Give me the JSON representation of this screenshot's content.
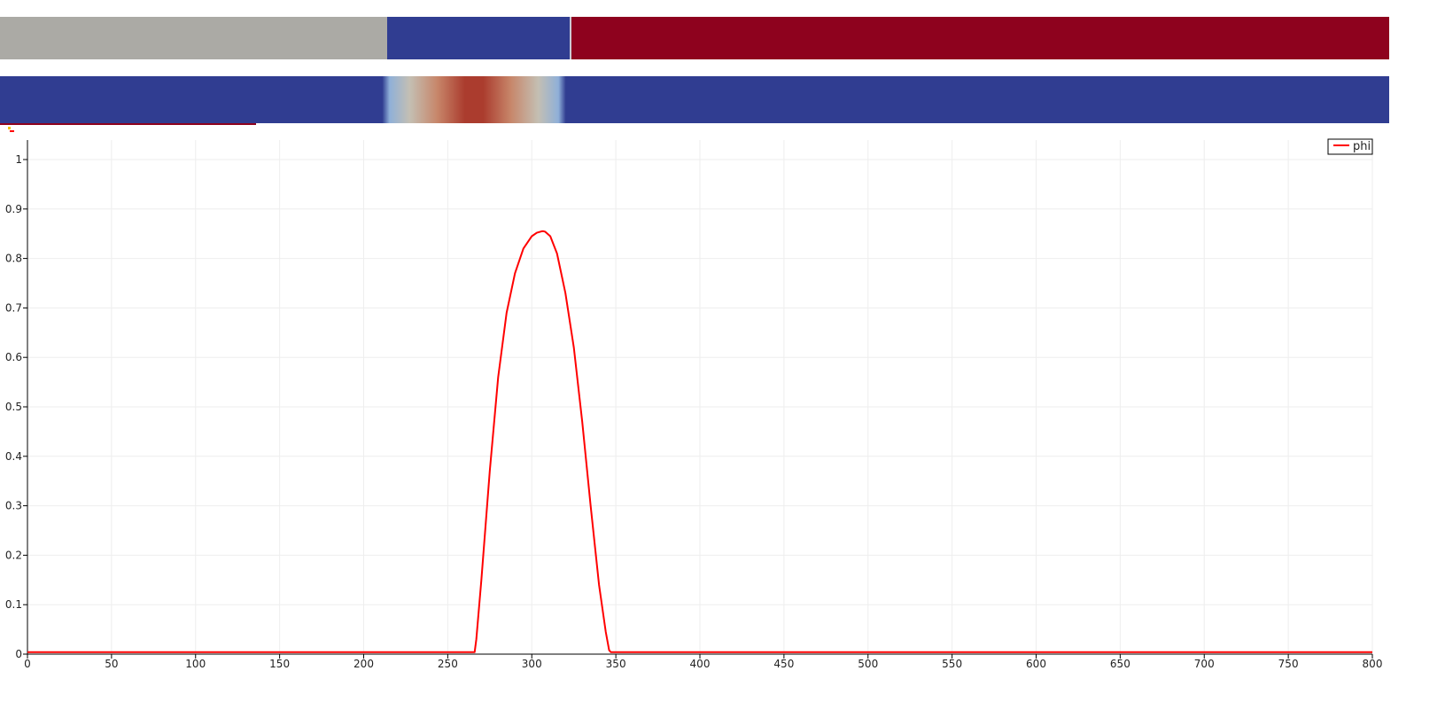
{
  "colors": {
    "gray": "#abaaa5",
    "blue": "#303d91",
    "red": "#8e021e",
    "line": "#ff0000",
    "grid": "#eeeeee",
    "axis": "#000000",
    "diverging_warm": "#ab3c2e",
    "diverging_mid": "#c4bfb3",
    "diverging_light": "#8fb0d8"
  },
  "material_band": {
    "segments": [
      {
        "label": "gray",
        "start": 0,
        "end": 230
      },
      {
        "label": "blue",
        "start": 230,
        "end": 339
      },
      {
        "label": "red",
        "start": 339,
        "end": 825
      }
    ]
  },
  "scalar_band": {
    "peak_start": 227,
    "peak_end": 336
  },
  "chart_data": {
    "type": "line",
    "title": "",
    "xlabel": "",
    "ylabel": "",
    "xlim": [
      0,
      800
    ],
    "ylim": [
      0,
      1
    ],
    "x_ticks": [
      "0",
      "50",
      "100",
      "150",
      "200",
      "250",
      "300",
      "350",
      "400",
      "450",
      "500",
      "550",
      "600",
      "650",
      "700",
      "750",
      "800"
    ],
    "y_ticks": [
      "0",
      "0.1",
      "0.2",
      "0.3",
      "0.4",
      "0.5",
      "0.6",
      "0.7",
      "0.8",
      "0.9",
      "1"
    ],
    "grid": true,
    "legend_position": "top-right",
    "series": [
      {
        "name": "phi",
        "color": "#ff0000",
        "x": [
          0,
          265,
          266,
          267,
          270,
          275,
          280,
          285,
          290,
          295,
          300,
          303,
          306,
          307,
          308,
          311,
          315,
          320,
          325,
          330,
          335,
          340,
          344,
          346,
          347,
          348,
          800
        ],
        "y": [
          0.004,
          0.004,
          0.004,
          0.03,
          0.15,
          0.37,
          0.56,
          0.69,
          0.77,
          0.82,
          0.845,
          0.852,
          0.855,
          0.855,
          0.854,
          0.845,
          0.81,
          0.73,
          0.62,
          0.47,
          0.3,
          0.14,
          0.045,
          0.008,
          0.004,
          0.004,
          0.004
        ]
      }
    ]
  }
}
